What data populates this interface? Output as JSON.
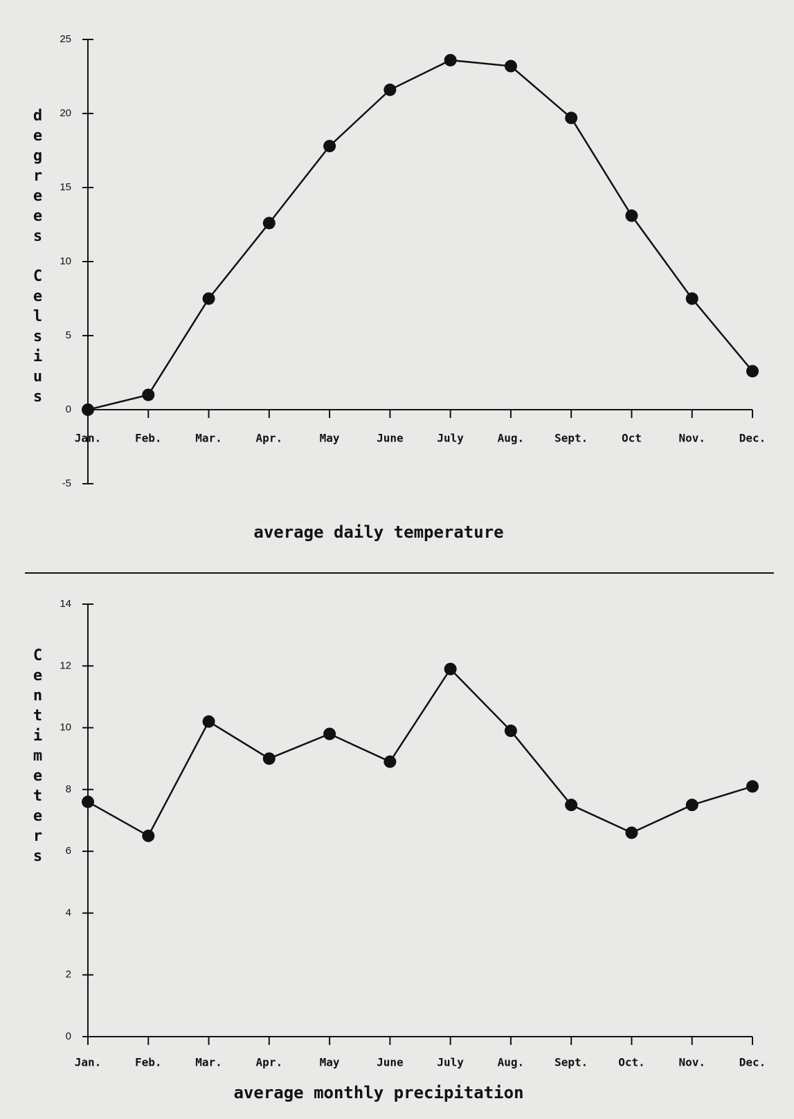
{
  "chart_data": [
    {
      "type": "line",
      "title": "average daily temperature",
      "y_label": "degrees Celsius",
      "categories": [
        "Jan.",
        "Feb.",
        "Mar.",
        "Apr.",
        "May",
        "June",
        "July",
        "Aug.",
        "Sept.",
        "Oct",
        "Nov.",
        "Dec."
      ],
      "values": [
        0,
        1.0,
        7.5,
        12.6,
        17.8,
        21.6,
        23.6,
        23.2,
        19.7,
        13.1,
        7.5,
        2.6
      ],
      "color": "#111111",
      "ylim": [
        -5,
        25
      ],
      "yticks": [
        -5,
        0,
        5,
        10,
        15,
        20,
        25
      ]
    },
    {
      "type": "line",
      "title": "average monthly precipitation",
      "y_label": "Centimeters",
      "categories": [
        "Jan.",
        "Feb.",
        "Mar.",
        "Apr.",
        "May",
        "June",
        "July",
        "Aug.",
        "Sept.",
        "Oct.",
        "Nov.",
        "Dec."
      ],
      "values": [
        7.6,
        6.5,
        10.2,
        9.0,
        9.8,
        8.9,
        11.9,
        9.9,
        7.5,
        6.6,
        7.5,
        8.1
      ],
      "color": "#111111",
      "ylim": [
        0,
        14
      ],
      "yticks": [
        0,
        2,
        4,
        6,
        8,
        10,
        12,
        14
      ]
    }
  ]
}
